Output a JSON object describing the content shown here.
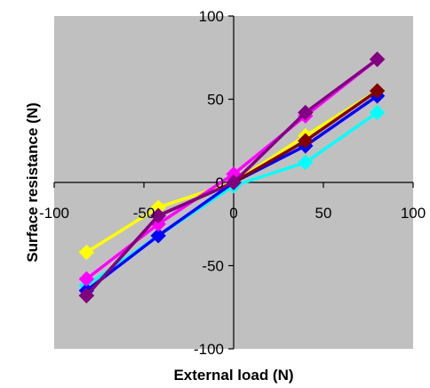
{
  "chart_data": {
    "type": "line",
    "title": "",
    "xlabel": "External load (N)",
    "ylabel": "Surface resistance (N)",
    "xlim": [
      -100,
      100
    ],
    "ylim": [
      -100,
      100
    ],
    "x_ticks": [
      -100,
      -50,
      0,
      50,
      100
    ],
    "y_ticks": [
      -100,
      -50,
      0,
      50,
      100
    ],
    "x_tick_labels": [
      "-100",
      "-50",
      "0",
      "50",
      "100"
    ],
    "y_tick_labels": [
      "-100",
      "-50",
      "0",
      "50",
      "100"
    ],
    "grid": false,
    "legend": "none",
    "plot_background": "#c0c0c0",
    "marker": "diamond",
    "series": [
      {
        "color": "#ffff00",
        "x": [
          -82,
          -42,
          0,
          40,
          80
        ],
        "y": [
          -42,
          -15,
          0,
          28,
          55
        ]
      },
      {
        "color": "#00ffff",
        "x": [
          -82,
          -42,
          0,
          40,
          80
        ],
        "y": [
          -62,
          -32,
          -2,
          12,
          42
        ]
      },
      {
        "color": "#0000ff",
        "x": [
          -82,
          -42,
          0,
          40,
          80
        ],
        "y": [
          -65,
          -32,
          0,
          22,
          52
        ]
      },
      {
        "color": "#ff00ff",
        "x": [
          -82,
          -42,
          0,
          40,
          80
        ],
        "y": [
          -58,
          -25,
          5,
          40,
          74
        ]
      },
      {
        "color": "#800000",
        "x": [
          -82,
          -42,
          0,
          40,
          80
        ],
        "y": [
          -68,
          -20,
          0,
          25,
          55
        ]
      },
      {
        "color": "#800080",
        "x": [
          -82,
          -42,
          0,
          40,
          80
        ],
        "y": [
          -68,
          -20,
          0,
          42,
          74
        ]
      }
    ]
  }
}
